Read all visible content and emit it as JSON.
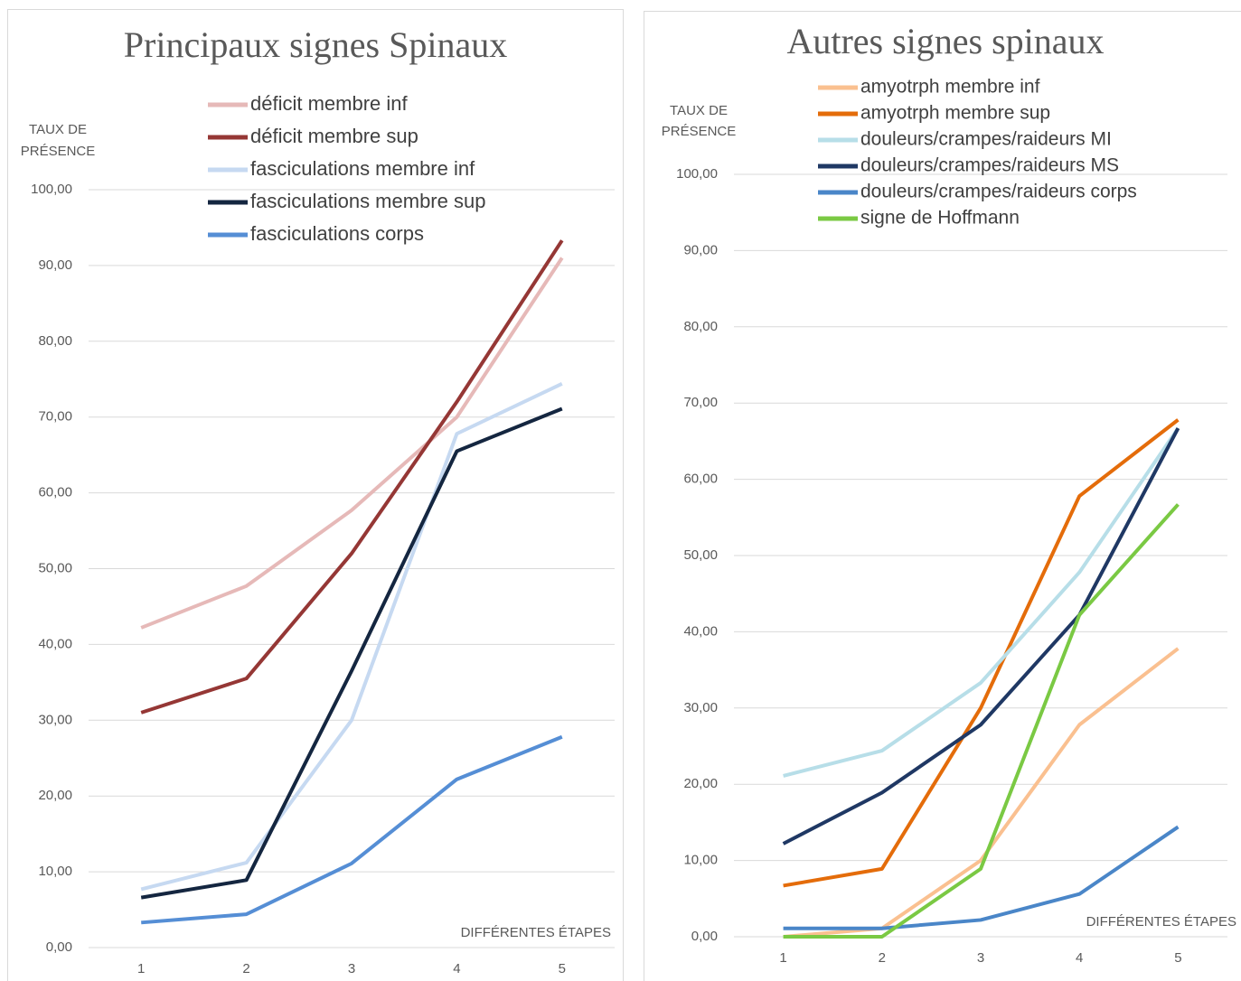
{
  "chart_data": [
    {
      "type": "line",
      "title": "Principaux signes Spinaux",
      "ylabel": [
        "TAUX DE",
        "PRÉSENCE"
      ],
      "xlabel": "DIFFÉRENTES ÉTAPES",
      "categories": [
        "1",
        "2",
        "3",
        "4",
        "5"
      ],
      "ylim": [
        0,
        100
      ],
      "yticks": [
        {
          "value": 0,
          "label": "0,00"
        },
        {
          "value": 10,
          "label": "10,00"
        },
        {
          "value": 20,
          "label": "20,00"
        },
        {
          "value": 30,
          "label": "30,00"
        },
        {
          "value": 40,
          "label": "40,00"
        },
        {
          "value": 50,
          "label": "50,00"
        },
        {
          "value": 60,
          "label": "60,00"
        },
        {
          "value": 70,
          "label": "70,00"
        },
        {
          "value": 80,
          "label": "80,00"
        },
        {
          "value": 90,
          "label": "90,00"
        },
        {
          "value": 100,
          "label": "100,00"
        }
      ],
      "grid": true,
      "series": [
        {
          "name": "déficit membre inf",
          "color": "#e6b9b8",
          "values": [
            42.2,
            47.7,
            57.7,
            70,
            91
          ]
        },
        {
          "name": "déficit membre sup",
          "color": "#953735",
          "values": [
            31,
            35.5,
            52,
            72,
            93.3
          ]
        },
        {
          "name": "fasciculations membre inf",
          "color": "#c6d9f1",
          "values": [
            7.7,
            11.2,
            30,
            67.8,
            74.4
          ]
        },
        {
          "name": "fasciculations membre sup",
          "color": "#142640",
          "values": [
            6.6,
            8.9,
            36.5,
            65.5,
            71.1
          ]
        },
        {
          "name": "fasciculations corps",
          "color": "#558ed5",
          "values": [
            3.3,
            4.4,
            11.1,
            22.2,
            27.8
          ]
        }
      ]
    },
    {
      "type": "line",
      "title": "Autres signes spinaux",
      "ylabel": [
        "TAUX DE",
        "PRÉSENCE"
      ],
      "xlabel": "DIFFÉRENTES ÉTAPES",
      "categories": [
        "1",
        "2",
        "3",
        "4",
        "5"
      ],
      "ylim": [
        0,
        100
      ],
      "yticks": [
        {
          "value": 0,
          "label": "0,00"
        },
        {
          "value": 10,
          "label": "10,00"
        },
        {
          "value": 20,
          "label": "20,00"
        },
        {
          "value": 30,
          "label": "30,00"
        },
        {
          "value": 40,
          "label": "40,00"
        },
        {
          "value": 50,
          "label": "50,00"
        },
        {
          "value": 60,
          "label": "60,00"
        },
        {
          "value": 70,
          "label": "70,00"
        },
        {
          "value": 80,
          "label": "80,00"
        },
        {
          "value": 90,
          "label": "90,00"
        },
        {
          "value": 100,
          "label": "100,00"
        }
      ],
      "grid": true,
      "series": [
        {
          "name": "amyotrph membre inf",
          "color": "#fac090",
          "values": [
            0,
            1.1,
            10,
            27.8,
            37.8
          ]
        },
        {
          "name": "amyotrph membre sup",
          "color": "#e46c0a",
          "values": [
            6.7,
            8.9,
            30,
            57.8,
            67.8
          ]
        },
        {
          "name": "douleurs/crampes/raideurs MI",
          "color": "#b7dee8",
          "values": [
            21.1,
            24.4,
            33.3,
            47.8,
            66.7
          ]
        },
        {
          "name": "douleurs/crampes/raideurs MS",
          "color": "#1f3864",
          "values": [
            12.2,
            18.9,
            27.8,
            42.2,
            66.7
          ]
        },
        {
          "name": "douleurs/crampes/raideurs corps",
          "color": "#4a86c8",
          "values": [
            1.1,
            1.1,
            2.2,
            5.6,
            14.4
          ]
        },
        {
          "name": "signe de Hoffmann",
          "color": "#7ac943",
          "values": [
            0,
            0,
            8.9,
            42.2,
            56.7
          ]
        }
      ]
    }
  ]
}
